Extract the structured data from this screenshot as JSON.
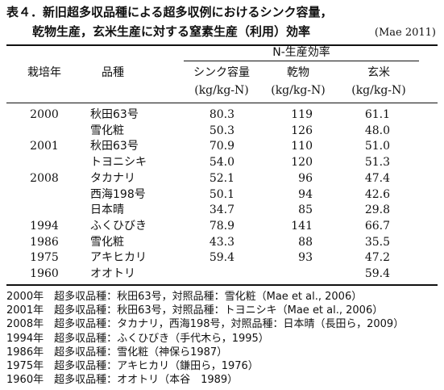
{
  "title": {
    "line1": "表４．新旧超多収品種による超多収例におけるシンク容量，",
    "line2": "乾物生産，玄米生産に対する窒素生産（利用）効率",
    "source": "(Mae 2011)"
  },
  "table": {
    "group_header": "N-生産効率",
    "columns": [
      {
        "label": "栽培年"
      },
      {
        "label": "品種"
      },
      {
        "label": "シンク容量",
        "unit": "(kg/kg-N)"
      },
      {
        "label": "乾物",
        "unit": "(kg/kg-N)"
      },
      {
        "label": "玄米",
        "unit": "(kg/kg-N)"
      }
    ],
    "rows": [
      [
        "2000",
        "秋田63号",
        "80.3",
        "119",
        "61.1"
      ],
      [
        null,
        "雪化粧",
        "50.3",
        "126",
        "48.0"
      ],
      [
        "2001",
        "秋田63号",
        "70.9",
        "110",
        "51.0"
      ],
      [
        null,
        "トヨニシキ",
        "54.0",
        "120",
        "51.3"
      ],
      [
        "2008",
        "タカナリ",
        "52.1",
        "96",
        "47.4"
      ],
      [
        null,
        "西海198号",
        "50.1",
        "94",
        "42.6"
      ],
      [
        null,
        "日本晴",
        "34.7",
        "85",
        "29.8"
      ],
      [
        "1994",
        "ふくひびき",
        "78.9",
        "141",
        "66.7"
      ],
      [
        "1986",
        "雪化粧",
        "43.3",
        "88",
        "35.5"
      ],
      [
        "1975",
        "アキヒカリ",
        "59.4",
        "93",
        "47.2"
      ],
      [
        "1960",
        "オオトリ",
        null,
        null,
        "59.4"
      ]
    ]
  },
  "notes": [
    "2000年　超多収品種：秋田63号，対照品種：雪化粧（Mae et al., 2006）",
    "2001年　超多収品種：秋田63号，対照品種：トヨニシキ（Mae et al., 2006）",
    "2008年　超多収品種：タカナリ，西海198号，対照品種：日本晴（長田ら，2009）",
    "1994年　超多収品種：ふくひびき（手代木ら，1995）",
    "1986年　超多収品種：雪化粧（神保ら1987）",
    "1975年　超多収品種：アキヒカリ（鎌田ら，1976）",
    "1960年　超多収品種：オオトリ（本谷　1989）"
  ]
}
